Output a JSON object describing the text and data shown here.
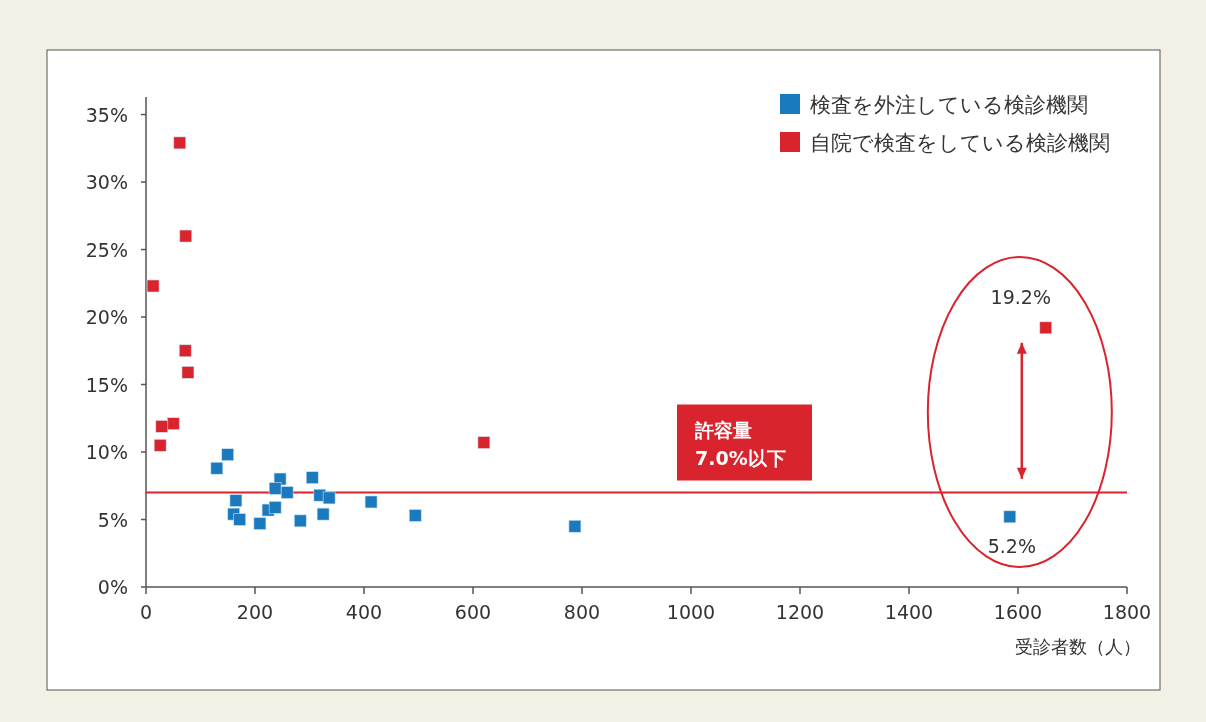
{
  "chart_data": {
    "type": "scatter",
    "xlabel": "受診者数（人）",
    "xlim": [
      0,
      1800
    ],
    "xticks": [
      0,
      200,
      400,
      600,
      800,
      1000,
      1200,
      1400,
      1600,
      1800
    ],
    "ylim": [
      0,
      36.3
    ],
    "yticks": [
      {
        "value": 0,
        "label": "0%"
      },
      {
        "value": 5,
        "label": "5%"
      },
      {
        "value": 10,
        "label": "10%"
      },
      {
        "value": 15,
        "label": "15%"
      },
      {
        "value": 20,
        "label": "20%"
      },
      {
        "value": 25,
        "label": "25%"
      },
      {
        "value": 30,
        "label": "30%"
      },
      {
        "value": 35,
        "label": "35%"
      }
    ],
    "marker": "square",
    "grid": false,
    "legend": "top right",
    "series": [
      {
        "name": "検査を外注している検診機関",
        "color": "#1b79bd",
        "x": [
          150,
          130,
          246,
          237,
          259,
          165,
          305,
          319,
          336,
          413,
          161,
          172,
          224,
          237,
          209,
          283,
          325,
          494,
          787,
          1585
        ],
        "values": [
          9.8,
          8.8,
          8.0,
          7.3,
          7.0,
          6.4,
          8.1,
          6.8,
          6.6,
          6.3,
          5.4,
          5.0,
          5.7,
          5.9,
          4.7,
          4.9,
          5.4,
          5.3,
          4.5,
          5.2
        ]
      },
      {
        "name": "自院で検査をしている検診機関",
        "color": "#d9232d",
        "x": [
          62,
          73,
          13,
          72,
          77,
          50,
          29,
          26,
          620,
          1651
        ],
        "values": [
          32.9,
          26.0,
          22.3,
          17.5,
          15.9,
          12.1,
          11.9,
          10.5,
          10.7,
          19.2
        ]
      }
    ],
    "ref_lines": [
      {
        "axis": "y",
        "value": 7.0,
        "label": "許容量\n7.0%以下",
        "color": "#d9232d"
      }
    ],
    "annotations": [
      {
        "text": "19.2%",
        "x": 1651,
        "y": 19.2
      },
      {
        "text": "5.2%",
        "x": 1585,
        "y": 5.2
      }
    ]
  }
}
